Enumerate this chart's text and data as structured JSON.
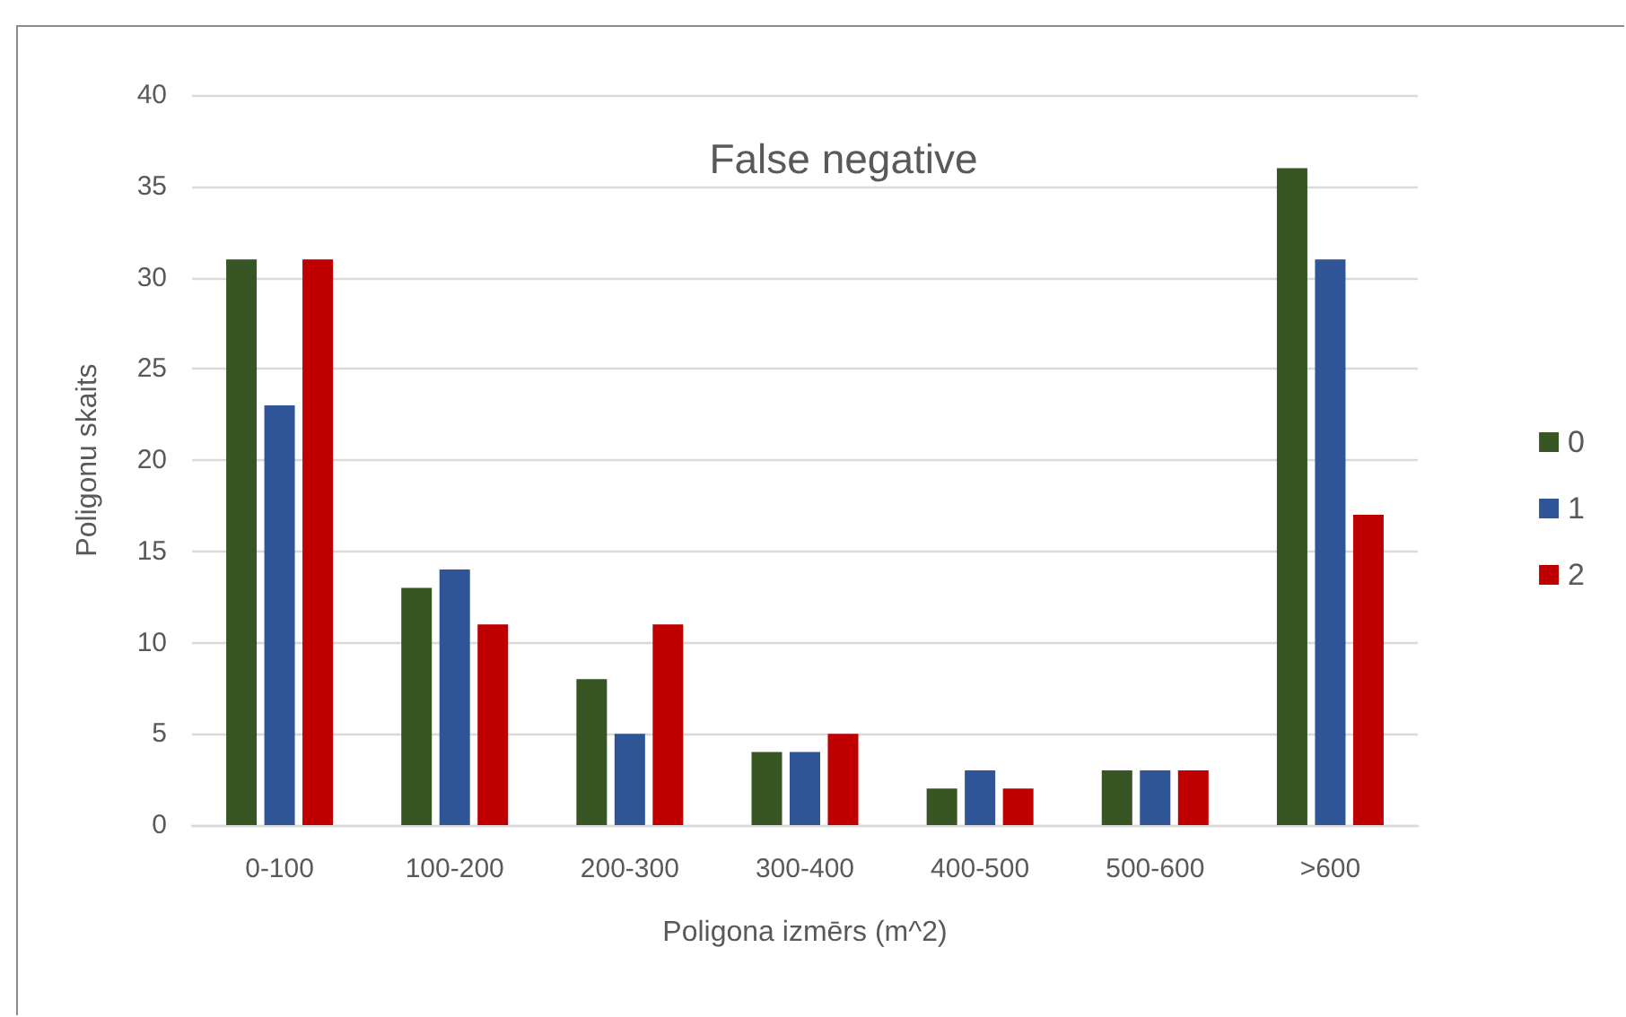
{
  "chart_data": {
    "type": "bar",
    "title": "False negative",
    "xlabel": "Poligona izmērs (m^2)",
    "ylabel": "Poligonu skaits",
    "categories": [
      "0-100",
      "100-200",
      "200-300",
      "300-400",
      "400-500",
      "500-600",
      ">600"
    ],
    "series": [
      {
        "name": "0",
        "color": "#375623",
        "values": [
          31,
          13,
          8,
          4,
          2,
          3,
          36
        ]
      },
      {
        "name": "1",
        "color": "#2f5597",
        "values": [
          23,
          14,
          5,
          4,
          3,
          3,
          31
        ]
      },
      {
        "name": "2",
        "color": "#c00000",
        "values": [
          31,
          11,
          11,
          5,
          2,
          3,
          17
        ]
      }
    ],
    "ylim": [
      0,
      40
    ],
    "yticks": [
      0,
      5,
      10,
      15,
      20,
      25,
      30,
      35,
      40
    ],
    "grid": "y",
    "legend": "right"
  }
}
